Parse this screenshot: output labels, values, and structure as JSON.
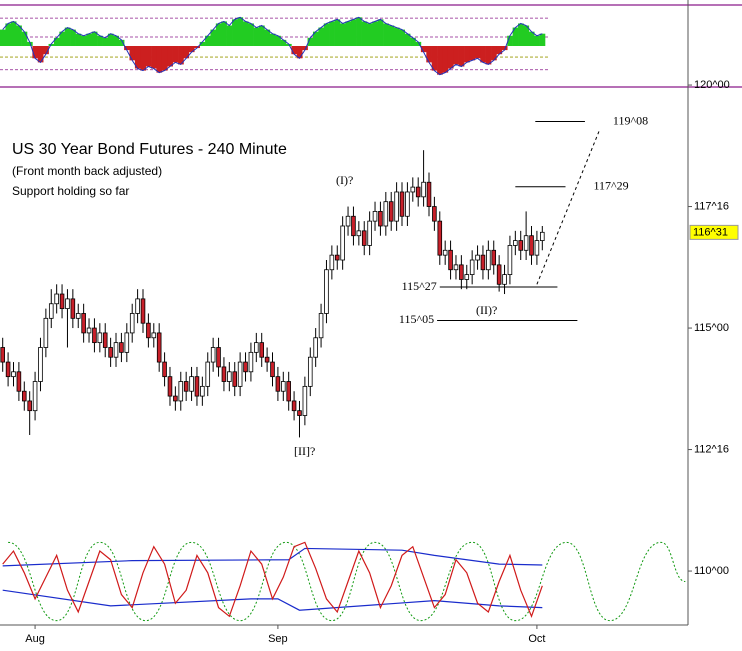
{
  "chart_data": {
    "type": "candlestick",
    "title": "US 30 Year Bond Futures - 240 Minute",
    "subtitle": "(Front month back adjusted)",
    "note": "Support holding so far",
    "annotations": [
      "(I)?",
      "(II)?",
      "[II]?"
    ],
    "categories": [
      null,
      null,
      null,
      null,
      null,
      null,
      "Aug",
      null,
      null,
      null,
      null,
      null,
      null,
      null,
      null,
      null,
      null,
      null,
      null,
      null,
      null,
      null,
      null,
      null,
      null,
      null,
      null,
      null,
      null,
      null,
      null,
      null,
      null,
      null,
      null,
      null,
      null,
      null,
      null,
      null,
      null,
      null,
      null,
      null,
      null,
      null,
      null,
      null,
      null,
      null,
      null,
      "Sep",
      null,
      null,
      null,
      null,
      null,
      null,
      null,
      null,
      null,
      null,
      null,
      null,
      null,
      null,
      null,
      null,
      null,
      null,
      null,
      null,
      null,
      null,
      null,
      null,
      null,
      null,
      null,
      null,
      null,
      null,
      null,
      null,
      null,
      null,
      null,
      null,
      null,
      null,
      null,
      null,
      null,
      null,
      null,
      null,
      null,
      null,
      null,
      "Oct",
      null
    ],
    "open": [
      114.6,
      114.3,
      114.0,
      114.1,
      113.7,
      113.5,
      113.3,
      113.9,
      114.6,
      115.2,
      115.5,
      115.7,
      115.4,
      115.6,
      115.2,
      115.3,
      114.9,
      115.0,
      114.7,
      114.9,
      114.6,
      114.4,
      114.7,
      114.5,
      114.9,
      115.3,
      115.6,
      115.1,
      114.8,
      114.9,
      114.3,
      114.0,
      113.6,
      113.5,
      113.9,
      113.7,
      114.0,
      113.6,
      113.8,
      114.3,
      114.6,
      114.2,
      113.9,
      114.1,
      113.8,
      114.3,
      114.1,
      114.5,
      114.7,
      114.4,
      114.3,
      114.0,
      113.7,
      113.9,
      113.5,
      113.3,
      113.2,
      113.8,
      114.4,
      114.8,
      115.3,
      116.2,
      116.5,
      116.4,
      117.1,
      117.3,
      116.9,
      117.0,
      116.7,
      117.2,
      117.4,
      117.1,
      117.6,
      117.2,
      117.8,
      117.3,
      117.8,
      117.9,
      117.7,
      118.0,
      117.5,
      117.2,
      116.5,
      116.6,
      116.2,
      116.3,
      116.0,
      116.1,
      116.4,
      116.5,
      116.2,
      116.6,
      116.3,
      115.9,
      116.1,
      116.7,
      116.8,
      116.6,
      116.9,
      116.5,
      116.8
    ],
    "high": [
      114.8,
      114.5,
      114.3,
      114.3,
      113.9,
      113.7,
      114.1,
      114.8,
      115.4,
      115.8,
      115.9,
      115.9,
      115.8,
      115.8,
      115.5,
      115.5,
      115.2,
      115.2,
      115.1,
      115.1,
      114.8,
      114.9,
      114.9,
      115.1,
      115.5,
      115.8,
      115.8,
      115.3,
      115.1,
      115.1,
      114.5,
      114.2,
      113.8,
      114.1,
      114.1,
      114.2,
      114.2,
      114.0,
      114.5,
      114.8,
      114.8,
      114.4,
      114.3,
      114.3,
      114.5,
      114.5,
      114.7,
      114.9,
      114.9,
      114.6,
      114.5,
      114.2,
      114.1,
      114.1,
      113.7,
      113.5,
      114.0,
      114.6,
      115.0,
      115.5,
      116.4,
      116.7,
      116.7,
      117.3,
      117.5,
      117.5,
      117.2,
      117.2,
      117.4,
      117.6,
      117.6,
      117.8,
      117.8,
      118.0,
      118.0,
      118.0,
      118.1,
      118.1,
      118.66,
      118.2,
      117.7,
      117.4,
      116.8,
      116.8,
      116.5,
      116.5,
      116.3,
      116.6,
      116.7,
      116.7,
      116.8,
      116.8,
      116.5,
      116.3,
      116.9,
      117.0,
      117.0,
      117.4,
      117.1,
      117.0,
      117.1
    ],
    "low": [
      114.1,
      113.8,
      113.8,
      113.5,
      113.3,
      112.8,
      113.1,
      113.7,
      114.4,
      115.0,
      115.3,
      115.2,
      114.6,
      115.0,
      115.0,
      114.7,
      114.7,
      114.5,
      114.5,
      114.4,
      114.2,
      114.2,
      114.3,
      114.3,
      114.7,
      115.1,
      114.9,
      114.6,
      114.6,
      114.1,
      113.8,
      113.4,
      113.3,
      113.3,
      113.5,
      113.5,
      113.4,
      113.4,
      113.6,
      114.1,
      114.0,
      113.7,
      113.7,
      113.6,
      113.6,
      113.9,
      113.9,
      114.3,
      114.2,
      114.1,
      113.8,
      113.5,
      113.5,
      113.3,
      113.1,
      112.75,
      113.0,
      113.6,
      114.2,
      114.6,
      115.1,
      116.0,
      116.2,
      116.2,
      116.9,
      116.7,
      116.7,
      116.5,
      116.5,
      117.0,
      116.9,
      116.9,
      117.0,
      117.0,
      117.1,
      117.1,
      117.6,
      117.5,
      117.5,
      117.3,
      117.0,
      116.3,
      116.3,
      116.0,
      116.0,
      115.8,
      115.8,
      115.9,
      116.2,
      116.0,
      116.0,
      116.1,
      115.75,
      115.7,
      115.9,
      116.5,
      116.4,
      116.4,
      116.3,
      116.3,
      116.6
    ],
    "close": [
      114.3,
      114.0,
      114.1,
      113.7,
      113.5,
      113.3,
      113.9,
      114.6,
      115.2,
      115.5,
      115.7,
      115.4,
      115.6,
      115.2,
      115.3,
      114.9,
      115.0,
      114.7,
      114.9,
      114.6,
      114.4,
      114.7,
      114.5,
      114.9,
      115.3,
      115.6,
      115.1,
      114.8,
      114.9,
      114.3,
      114.0,
      113.6,
      113.5,
      113.9,
      113.7,
      114.0,
      113.6,
      113.8,
      114.3,
      114.6,
      114.2,
      113.9,
      114.1,
      113.8,
      114.3,
      114.1,
      114.5,
      114.7,
      114.4,
      114.3,
      114.0,
      113.7,
      113.9,
      113.5,
      113.3,
      113.2,
      113.8,
      114.4,
      114.8,
      115.3,
      116.2,
      116.5,
      116.4,
      117.1,
      117.3,
      116.9,
      117.0,
      116.7,
      117.2,
      117.4,
      117.1,
      117.6,
      117.2,
      117.8,
      117.3,
      117.8,
      117.9,
      117.7,
      118.0,
      117.5,
      117.2,
      116.5,
      116.6,
      116.2,
      116.3,
      116.0,
      116.1,
      116.4,
      116.5,
      116.2,
      116.6,
      116.3,
      115.9,
      116.1,
      116.7,
      116.8,
      116.6,
      116.9,
      116.5,
      116.8,
      116.97
    ],
    "up_color": "#ffffff",
    "down_color": "#c8202a",
    "xlim": [
      -0.5,
      127
    ],
    "ylim": [
      108.89,
      121.75
    ],
    "yticks": [
      {
        "value": 120,
        "label": "120^00"
      },
      {
        "value": 117.5,
        "label": "117^16"
      },
      {
        "value": 115,
        "label": "115^00"
      },
      {
        "value": 112.5,
        "label": "112^16"
      },
      {
        "value": 110,
        "label": "110^00"
      }
    ],
    "last_price": {
      "value": 116.96875,
      "label": "116^31",
      "color": "#ffff00"
    },
    "levels": [
      {
        "value": 119.25,
        "label": "119^08",
        "x": [
          98.7,
          107.9
        ],
        "label_side": "right"
      },
      {
        "value": 117.90625,
        "label": "117^29",
        "x": [
          95,
          104.3
        ],
        "label_side": "right"
      },
      {
        "value": 115.84375,
        "label": "115^27",
        "x": [
          81,
          102.8
        ],
        "label_side": "left"
      },
      {
        "value": 115.15625,
        "label": "115^05",
        "x": [
          80.5,
          106.5
        ],
        "label_side": "left"
      }
    ],
    "projection": {
      "x": [
        99,
        110.7
      ],
      "values": [
        115.9,
        119.1
      ]
    },
    "top_panel": {
      "type": "histogram",
      "ylim": [
        -100,
        100
      ],
      "levels": [
        68,
        22,
        -27,
        -58
      ],
      "positive_color": "#22cc22",
      "negative_color": "#cc1f1f",
      "line_color": "#2233bb",
      "values": [
        40,
        55,
        60,
        50,
        35,
        10,
        -30,
        -40,
        -20,
        5,
        20,
        35,
        45,
        40,
        30,
        25,
        30,
        35,
        25,
        20,
        30,
        25,
        15,
        -10,
        -35,
        -55,
        -60,
        -50,
        -55,
        -65,
        -60,
        -50,
        -40,
        -45,
        -30,
        -15,
        -5,
        10,
        25,
        40,
        55,
        60,
        50,
        65,
        70,
        60,
        55,
        45,
        50,
        40,
        30,
        25,
        15,
        5,
        -20,
        -30,
        -10,
        20,
        35,
        45,
        55,
        60,
        65,
        55,
        60,
        65,
        70,
        60,
        55,
        60,
        65,
        55,
        50,
        45,
        40,
        30,
        20,
        10,
        -15,
        -40,
        -60,
        -70,
        -65,
        -55,
        -45,
        -50,
        -40,
        -35,
        -30,
        -40,
        -45,
        -35,
        -20,
        -10,
        25,
        45,
        55,
        50,
        35,
        25,
        30
      ]
    },
    "bottom_panel": {
      "type": "line",
      "ylim": [
        0,
        100
      ],
      "series": [
        {
          "color": "#119911",
          "style": "dotted",
          "smooth": true,
          "x": [
            1,
            10,
            18,
            26.5,
            35,
            44,
            52.5,
            61,
            69,
            77.5,
            87,
            95,
            104.5,
            112.5,
            122,
            126.5
          ],
          "values": [
            95,
            5,
            95,
            5,
            95,
            5,
            95,
            5,
            95,
            5,
            95,
            5,
            95,
            5,
            95,
            50
          ]
        },
        {
          "color": "#1a2ccc",
          "style": "solid",
          "smooth": false,
          "x": [
            0,
            24,
            53,
            56,
            74,
            80,
            92,
            100
          ],
          "values": [
            68,
            74,
            75,
            88,
            86,
            80,
            70,
            69
          ]
        },
        {
          "color": "#1a2ccc",
          "style": "solid",
          "smooth": false,
          "x": [
            0,
            20,
            46,
            51,
            55,
            80,
            92,
            100
          ],
          "values": [
            40,
            22,
            30,
            30,
            17,
            28,
            22,
            20
          ]
        },
        {
          "color": "#d01a1a",
          "style": "solid",
          "smooth": false,
          "x": [
            0,
            2,
            4,
            6,
            8,
            10,
            12,
            14,
            16,
            18,
            20,
            22,
            24,
            26,
            28,
            30,
            32,
            34,
            36,
            38,
            40,
            42,
            44,
            46,
            48,
            50,
            52,
            54,
            56,
            58,
            60,
            62,
            64,
            66,
            68,
            70,
            72,
            74,
            76,
            78,
            80,
            82,
            84,
            86,
            88,
            90,
            92,
            94,
            96,
            98,
            100
          ],
          "values": [
            70,
            85,
            60,
            30,
            55,
            80,
            40,
            15,
            50,
            85,
            75,
            35,
            20,
            60,
            90,
            70,
            25,
            40,
            80,
            60,
            20,
            10,
            45,
            85,
            70,
            30,
            55,
            90,
            95,
            65,
            30,
            15,
            50,
            85,
            60,
            20,
            45,
            80,
            90,
            55,
            20,
            35,
            75,
            60,
            25,
            15,
            50,
            80,
            40,
            10,
            45
          ]
        }
      ]
    }
  }
}
